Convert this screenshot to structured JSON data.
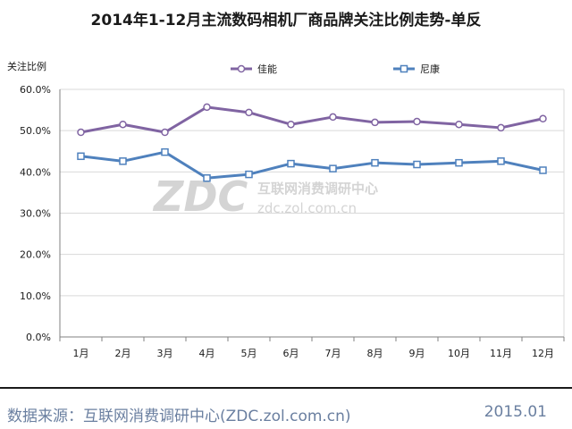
{
  "title": "2014年1-12月主流数码相机厂商品牌关注比例走势-单反",
  "y_unit_label": "关注比例",
  "footer": {
    "source": "数据来源：互联网消费调研中心(ZDC.zol.com.cn)",
    "date": "2015.01"
  },
  "watermark": {
    "logo": "ZDC",
    "name": "互联网消费调研中心",
    "url": "zdc.zol.com.cn"
  },
  "colors": {
    "canon": "#8064a2",
    "nikon": "#4f81bd",
    "grid": "#d9d9d9",
    "axis": "#808080"
  },
  "chart_data": {
    "type": "line",
    "title": "2014年1-12月主流数码相机厂商品牌关注比例走势-单反",
    "ylabel": "关注比例",
    "xlabel": "",
    "categories": [
      "1月",
      "2月",
      "3月",
      "4月",
      "5月",
      "6月",
      "7月",
      "8月",
      "9月",
      "10月",
      "11月",
      "12月"
    ],
    "ylim": [
      0,
      60
    ],
    "yticks": [
      0,
      10,
      20,
      30,
      40,
      50,
      60
    ],
    "ytick_labels": [
      "0.0%",
      "10.0%",
      "20.0%",
      "30.0%",
      "40.0%",
      "50.0%",
      "60.0%"
    ],
    "grid": true,
    "legend_position": "top",
    "series": [
      {
        "name": "佳能",
        "marker": "circle",
        "color": "#8064a2",
        "values": [
          49.6,
          51.5,
          49.6,
          55.7,
          54.4,
          51.5,
          53.3,
          52.0,
          52.2,
          51.5,
          50.7,
          52.9
        ]
      },
      {
        "name": "尼康",
        "marker": "square",
        "color": "#4f81bd",
        "values": [
          43.8,
          42.6,
          44.8,
          38.5,
          39.4,
          42.0,
          40.8,
          42.2,
          41.8,
          42.2,
          42.6,
          40.4
        ]
      }
    ]
  }
}
